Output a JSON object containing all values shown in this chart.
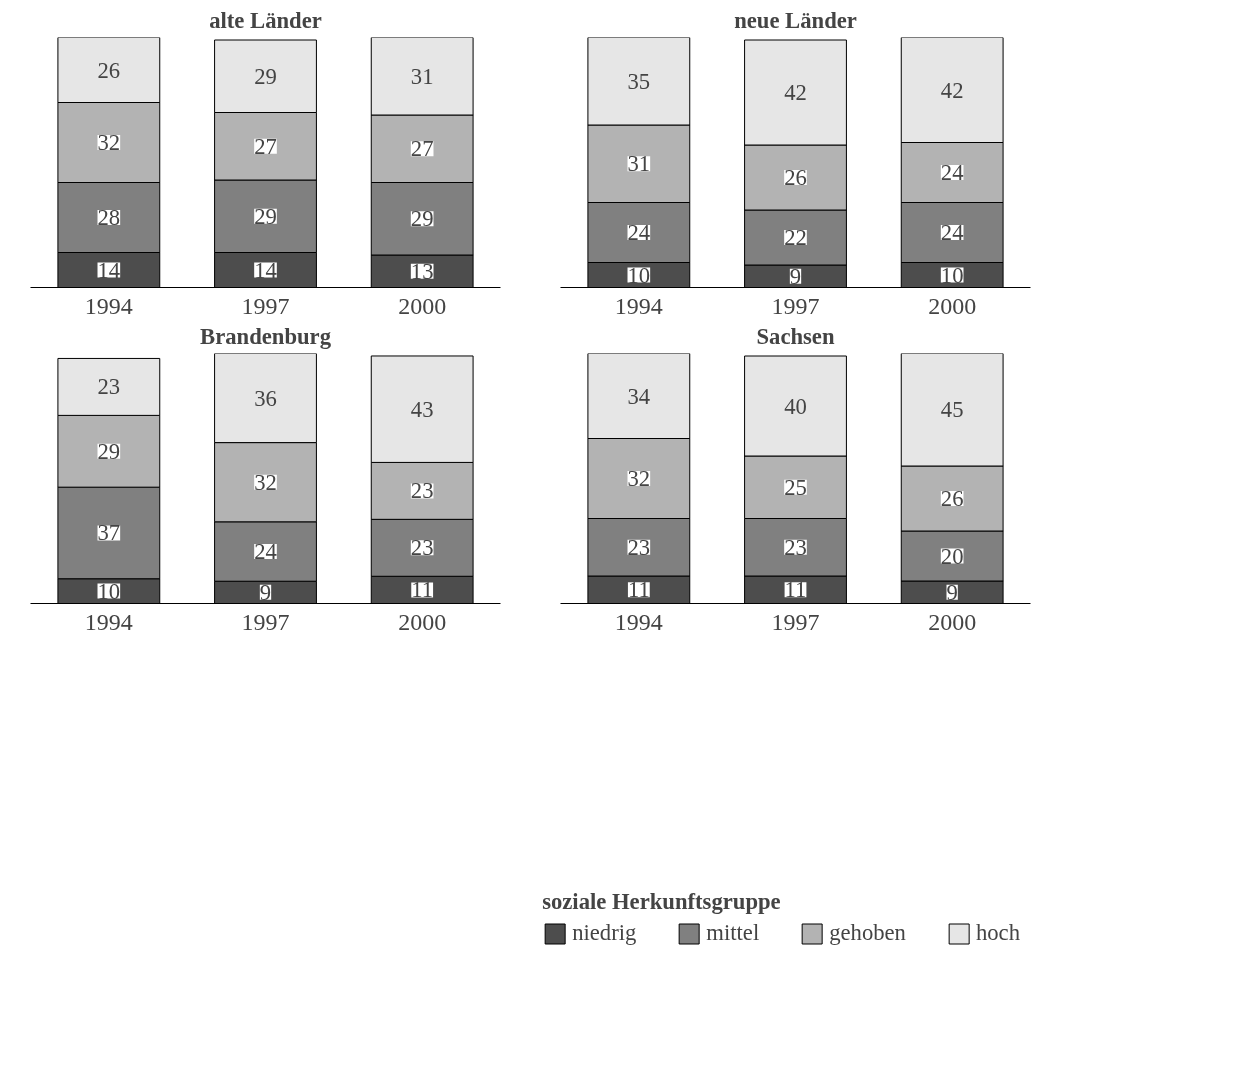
{
  "chart_data": [
    {
      "type": "bar",
      "stacked": true,
      "title": "alte Länder",
      "categories": [
        "1994",
        "1997",
        "2000"
      ],
      "data_labels": true,
      "series": [
        {
          "color": "#4d4d4d",
          "values": [
            14,
            14,
            13
          ]
        },
        {
          "color": "#808080",
          "values": [
            28,
            29,
            29
          ]
        },
        {
          "color": "#b3b3b3",
          "values": [
            32,
            27,
            27
          ]
        },
        {
          "color": "#e6e6e6",
          "values": [
            26,
            29,
            31
          ]
        }
      ]
    },
    {
      "type": "bar",
      "stacked": true,
      "title": "neue Länder",
      "categories": [
        "1994",
        "1997",
        "2000"
      ],
      "data_labels": true,
      "series": [
        {
          "color": "#4d4d4d",
          "values": [
            10,
            9,
            10
          ]
        },
        {
          "color": "#808080",
          "values": [
            24,
            22,
            24
          ]
        },
        {
          "color": "#b3b3b3",
          "values": [
            31,
            26,
            24
          ]
        },
        {
          "color": "#e6e6e6",
          "values": [
            35,
            42,
            42
          ]
        }
      ]
    },
    {
      "type": "bar",
      "stacked": true,
      "title": "Brandenburg",
      "categories": [
        "1994",
        "1997",
        "2000"
      ],
      "data_labels": true,
      "series": [
        {
          "color": "#4d4d4d",
          "values": [
            10,
            9,
            11
          ]
        },
        {
          "color": "#808080",
          "values": [
            37,
            24,
            23
          ]
        },
        {
          "color": "#b3b3b3",
          "values": [
            29,
            32,
            23
          ]
        },
        {
          "color": "#e6e6e6",
          "values": [
            23,
            36,
            43
          ]
        }
      ]
    },
    {
      "type": "bar",
      "stacked": true,
      "title": "Sachsen",
      "categories": [
        "1994",
        "1997",
        "2000"
      ],
      "data_labels": true,
      "legend": "bottom",
      "legend_title": "soziale Herkunftsgruppe",
      "series": [
        {
          "name": "niedrig",
          "color": "#4d4d4d",
          "values": [
            11,
            11,
            9
          ]
        },
        {
          "name": "mittel",
          "color": "#808080",
          "values": [
            23,
            23,
            20
          ]
        },
        {
          "name": "gehoben",
          "color": "#b3b3b3",
          "values": [
            32,
            25,
            26
          ]
        },
        {
          "name": "hoch",
          "color": "#e6e6e6",
          "values": [
            34,
            40,
            45
          ]
        }
      ]
    }
  ]
}
